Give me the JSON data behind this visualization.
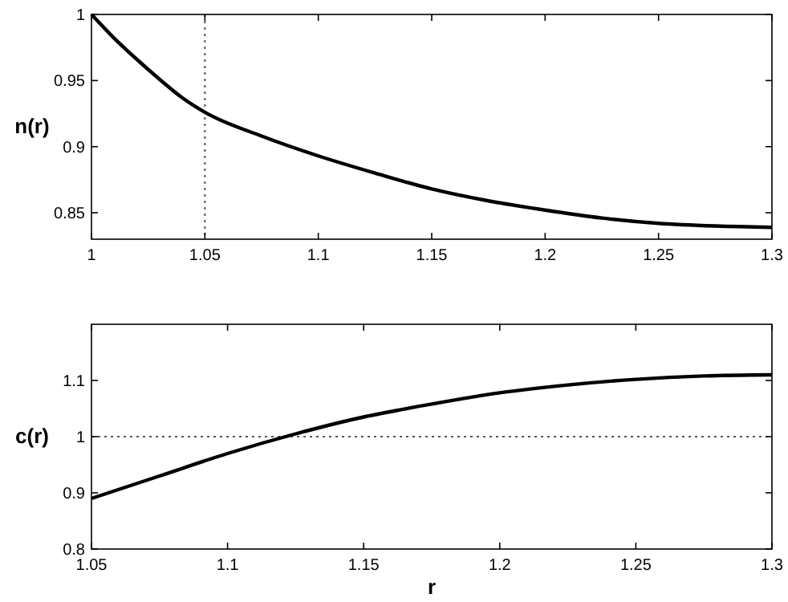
{
  "chart_data": [
    {
      "type": "line",
      "ylabel": "n(r)",
      "x": [
        1,
        1.01,
        1.02,
        1.03,
        1.04,
        1.05,
        1.075,
        1.1,
        1.125,
        1.15,
        1.175,
        1.2,
        1.225,
        1.25,
        1.275,
        1.3
      ],
      "series": [
        {
          "color": "#000000",
          "values": [
            1,
            0.982,
            0.966,
            0.951,
            0.937,
            0.926,
            0.908,
            0.893,
            0.88,
            0.868,
            0.859,
            0.852,
            0.846,
            0.842,
            0.84,
            0.839
          ]
        }
      ],
      "xlim": [
        1,
        1.3
      ],
      "ylim": [
        0.83,
        1
      ],
      "xticks": [
        1,
        1.05,
        1.1,
        1.15,
        1.2,
        1.25,
        1.3
      ],
      "yticks": [
        0.85,
        0.9,
        0.95,
        1
      ],
      "ref_lines": [
        {
          "axis": "x",
          "value": 1.05,
          "line_style": "dotted",
          "color": "#555555"
        }
      ],
      "grid": false,
      "line_style": "solid"
    },
    {
      "type": "line",
      "xlabel": "r",
      "ylabel": "c(r)",
      "x": [
        1.05,
        1.075,
        1.1,
        1.125,
        1.15,
        1.175,
        1.2,
        1.225,
        1.25,
        1.275,
        1.3
      ],
      "series": [
        {
          "color": "#000000",
          "values": [
            0.89,
            0.93,
            0.97,
            1.005,
            1.035,
            1.058,
            1.078,
            1.092,
            1.102,
            1.108,
            1.11
          ]
        }
      ],
      "xlim": [
        1.05,
        1.3
      ],
      "ylim": [
        0.8,
        1.2
      ],
      "xticks": [
        1.05,
        1.1,
        1.15,
        1.2,
        1.25,
        1.3
      ],
      "yticks": [
        0.8,
        0.9,
        1,
        1.1
      ],
      "ref_lines": [
        {
          "axis": "y",
          "value": 1,
          "line_style": "dotted",
          "color": "#555555"
        }
      ],
      "grid": false,
      "line_style": "solid"
    }
  ]
}
